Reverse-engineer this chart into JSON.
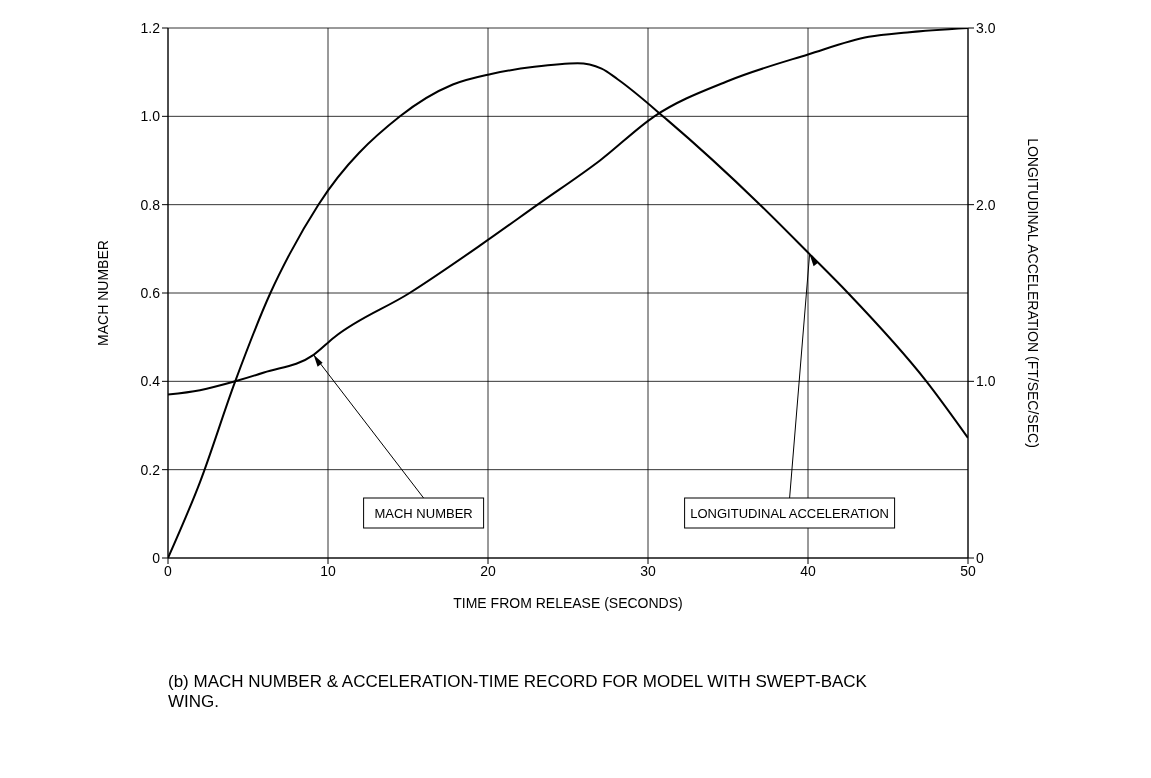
{
  "chart_data": {
    "type": "line",
    "title": "(b) MACH NUMBER & ACCELERATION-TIME RECORD FOR MODEL WITH SWEPT-BACK WING.",
    "xlabel": "TIME FROM RELEASE (SECONDS)",
    "ylabel": "MACH NUMBER",
    "y2label": "LONGITUDINAL ACCELERATION (FT/SEC/SEC)",
    "xlim": [
      0,
      50
    ],
    "xticks": [
      0,
      10,
      20,
      30,
      40,
      50
    ],
    "ylim": [
      0,
      1.2
    ],
    "yticks": [
      0,
      {
        "value": 0.2,
        "label": "0.2"
      },
      {
        "value": 0.4,
        "label": "0.4"
      },
      {
        "value": 0.6,
        "label": "0.6"
      },
      {
        "value": 0.8,
        "label": "0.8"
      },
      {
        "value": 1.0,
        "label": "1.0"
      },
      {
        "value": 1.2,
        "label": "1.2"
      }
    ],
    "y2lim": [
      0,
      3.0
    ],
    "y2ticks": [
      0,
      {
        "value": 1.0,
        "label": "1.0"
      },
      {
        "value": 2.0,
        "label": "2.0"
      },
      {
        "value": 3.0,
        "label": "3.0"
      }
    ],
    "grid": true,
    "legend": false,
    "marker": "none",
    "line_style": "solid",
    "series": [
      {
        "name": "MACH NUMBER",
        "color": "#000000",
        "x": [
          0,
          2,
          4.2,
          6,
          9.1,
          10.4,
          15.1,
          19.6,
          23.1,
          27,
          30.4,
          35,
          40,
          43.8,
          46.2,
          50
        ],
        "values": [
          0.37,
          0.38,
          0.4,
          0.42,
          0.46,
          0.5,
          0.6,
          0.71,
          0.8,
          0.9,
          1.0,
          1.08,
          1.14,
          1.18,
          1.19,
          1.2
        ]
      },
      {
        "name": "LONGITUDINAL ACCELERATION",
        "color": "#000000",
        "axis": "y2",
        "x": [
          0,
          2,
          4.2,
          6.4,
          7.6,
          9.4,
          14.5,
          17.8,
          20.2,
          22.9,
          25.6,
          27.1,
          28.1,
          31.2,
          37,
          40.1,
          42.5,
          47.4,
          50
        ],
        "values": [
          0,
          0.43,
          1.0,
          1.5,
          1.72,
          2.0,
          2.5,
          2.68,
          2.74,
          2.78,
          2.8,
          2.77,
          2.71,
          2.48,
          2.0,
          1.72,
          1.5,
          1.0,
          0.68
        ]
      }
    ]
  }
}
